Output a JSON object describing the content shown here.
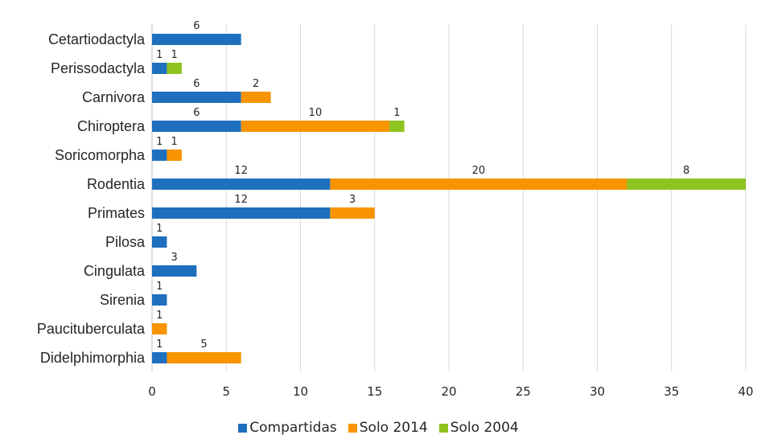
{
  "chart_data": {
    "type": "bar",
    "orientation": "horizontal",
    "stacked": true,
    "categories": [
      "Cetartiodactyla",
      "Perissodactyla",
      "Carnivora",
      "Chiroptera",
      "Soricomorpha",
      "Rodentia",
      "Primates",
      "Pilosa",
      "Cingulata",
      "Sirenia",
      "Paucituberculata",
      "Didelphimorphia"
    ],
    "series": [
      {
        "name": "Compartidas",
        "color": "#1f6fbf",
        "values": [
          6,
          1,
          6,
          6,
          1,
          12,
          12,
          1,
          3,
          1,
          0,
          1
        ]
      },
      {
        "name": "Solo 2014",
        "color": "#f79400",
        "values": [
          0,
          0,
          2,
          10,
          1,
          20,
          3,
          0,
          0,
          0,
          1,
          5
        ]
      },
      {
        "name": "Solo 2004",
        "color": "#8fc31f",
        "values": [
          0,
          1,
          0,
          1,
          0,
          8,
          0,
          0,
          0,
          0,
          0,
          0
        ]
      }
    ],
    "xlim": [
      0,
      40
    ],
    "xticks": [
      0,
      5,
      10,
      15,
      20,
      25,
      30,
      35,
      40
    ],
    "title": "",
    "xlabel": "",
    "ylabel": "",
    "grid": "vertical",
    "legend_position": "bottom"
  }
}
